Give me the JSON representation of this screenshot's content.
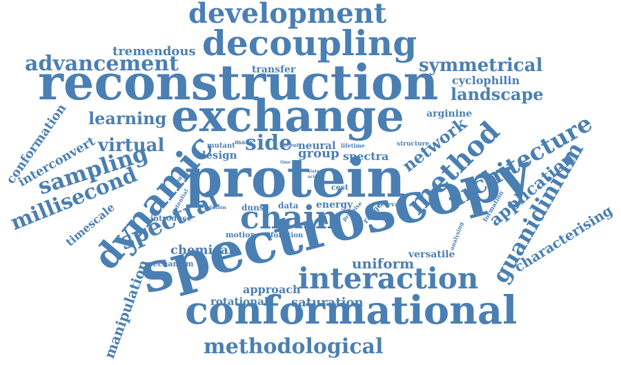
{
  "word_cloud": {
    "color": "#4a7fb3",
    "words": [
      "spectroscopy",
      "reconstruction",
      "exchange",
      "protein",
      "conformational",
      "decoupling",
      "development",
      "interaction",
      "dynamic",
      "chain",
      "side",
      "spectral",
      "method",
      "architecture",
      "network",
      "methodological",
      "advancement",
      "landscape",
      "symmetrical",
      "guanidinium",
      "uniform",
      "millisecond",
      "sampling",
      "learning",
      "virtual",
      "application",
      "manipulation",
      "characterising",
      "saturation",
      "tremendous",
      "cyclophilin",
      "arginine",
      "transfer",
      "approach",
      "rotational",
      "chemical",
      "conformation",
      "interconvert",
      "timescale",
      "design",
      "group",
      "spectra",
      "neural",
      "energy",
      "versatile",
      "motion",
      "function",
      "introduce",
      "mechanism",
      "mutant",
      "data",
      "dnns",
      "cest",
      "range",
      "relevant",
      "formation",
      "analysing",
      "promise",
      "lifetime",
      "structure",
      "recent",
      "many",
      "time",
      "single",
      "state",
      "acid",
      "potential",
      "rotation"
    ]
  }
}
